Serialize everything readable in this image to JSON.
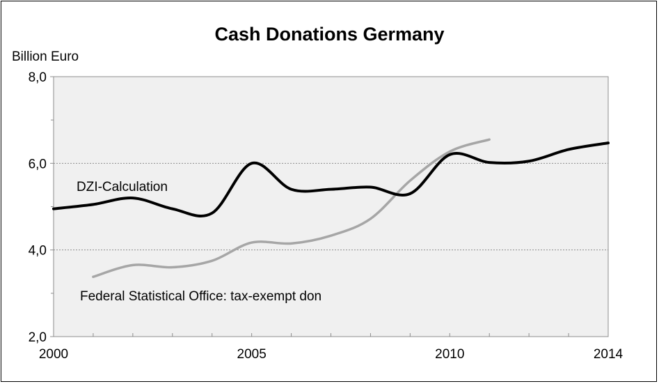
{
  "chart_data": {
    "type": "line",
    "title": "Cash Donations Germany",
    "ylabel": "Billion Euro",
    "xlabel": "",
    "xlim": [
      2000,
      2014
    ],
    "ylim": [
      2.0,
      8.0
    ],
    "x_tick_labels": [
      "2000",
      "2005",
      "2010",
      "2014"
    ],
    "y_tick_labels": [
      "2,0",
      "4,0",
      "6,0",
      "8,0"
    ],
    "grid": true,
    "series": [
      {
        "name": "DZI-Calculation",
        "color": "#000000",
        "x": [
          2000,
          2001,
          2002,
          2003,
          2004,
          2005,
          2006,
          2007,
          2008,
          2009,
          2010,
          2011,
          2012,
          2013,
          2014
        ],
        "values": [
          4.95,
          5.05,
          5.2,
          4.95,
          4.85,
          6.0,
          5.4,
          5.4,
          5.45,
          5.3,
          6.2,
          6.02,
          6.05,
          6.32,
          6.47
        ]
      },
      {
        "name": "Federal Statistical Office: tax-exempt don",
        "color": "#a6a6a6",
        "x": [
          2001,
          2002,
          2003,
          2004,
          2005,
          2006,
          2007,
          2008,
          2009,
          2010,
          2011
        ],
        "values": [
          3.38,
          3.65,
          3.6,
          3.75,
          4.17,
          4.15,
          4.33,
          4.72,
          5.6,
          6.27,
          6.55
        ]
      }
    ]
  }
}
